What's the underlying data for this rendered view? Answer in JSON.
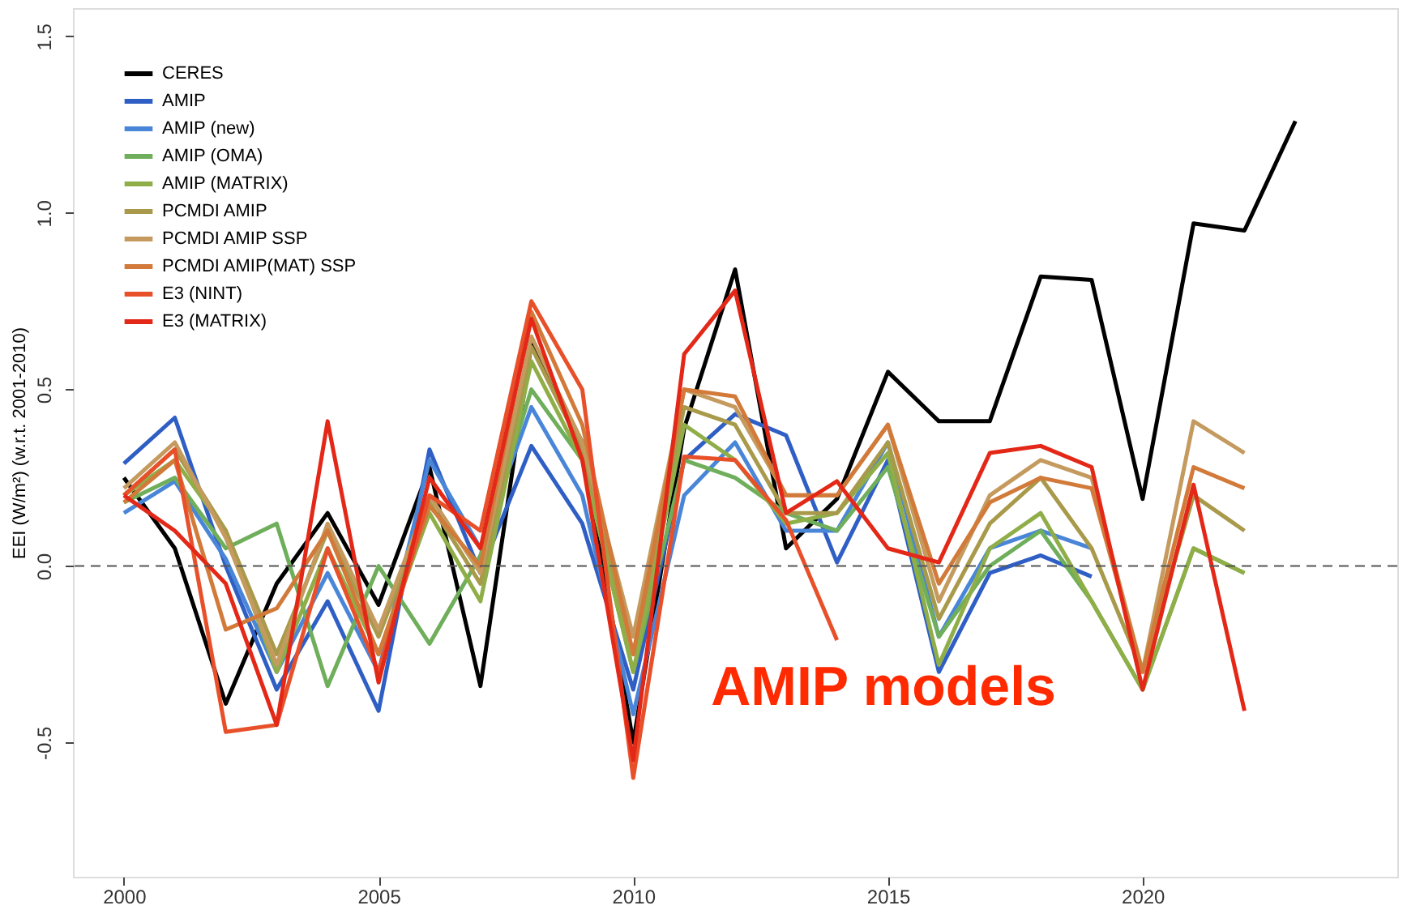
{
  "chart_data": {
    "type": "line",
    "ylabel": "EEI (W/m²) (w.r.t. 2001-2010)",
    "xlim": [
      1999,
      2025
    ],
    "xticks": [
      2000,
      2005,
      2010,
      2015,
      2020
    ],
    "ylim": [
      -0.88,
      1.58
    ],
    "yticks": [
      {
        "value": -0.5,
        "label": "-0.5"
      },
      {
        "value": 0,
        "label": "0.0"
      },
      {
        "value": 0.5,
        "label": "0.5"
      },
      {
        "value": 1,
        "label": "1.0"
      },
      {
        "value": 1.5,
        "label": "1.5"
      }
    ],
    "grid": false,
    "legend": "top left",
    "marker": "none",
    "line_style": "solid",
    "ref_lines": [
      {
        "axis": "y",
        "value": 0,
        "color": "#555555",
        "line_style": "dashed"
      }
    ],
    "annotations": [
      "AMIP models"
    ],
    "series": [
      {
        "name": "CERES",
        "color": "#000000",
        "x": [
          2000,
          2001,
          2002,
          2003,
          2004,
          2005,
          2006,
          2007,
          2008,
          2009,
          2010,
          2011,
          2012,
          2013,
          2014,
          2015,
          2016,
          2017,
          2018,
          2019,
          2020,
          2021,
          2022,
          2023
        ],
        "values": [
          0.25,
          0.05,
          -0.39,
          -0.05,
          0.15,
          -0.11,
          0.28,
          -0.34,
          0.63,
          0.35,
          -0.5,
          0.39,
          0.84,
          0.05,
          0.19,
          0.55,
          0.41,
          0.41,
          0.82,
          0.81,
          0.19,
          0.97,
          0.95,
          1.26
        ]
      },
      {
        "name": "AMIP",
        "color": "#2f5fc4",
        "x": [
          2000,
          2001,
          2002,
          2003,
          2004,
          2005,
          2006,
          2007,
          2008,
          2009,
          2010,
          2011,
          2012,
          2013,
          2014,
          2015,
          2016,
          2017,
          2018,
          2019
        ],
        "values": [
          0.29,
          0.42,
          0.0,
          -0.35,
          -0.1,
          -0.41,
          0.33,
          -0.02,
          0.34,
          0.12,
          -0.35,
          0.3,
          0.43,
          0.37,
          0.01,
          0.3,
          -0.3,
          -0.02,
          0.03,
          -0.03
        ]
      },
      {
        "name": "AMIP (new)",
        "color": "#4a86d8",
        "x": [
          2000,
          2001,
          2002,
          2003,
          2004,
          2005,
          2006,
          2007,
          2008,
          2009,
          2010,
          2011,
          2012,
          2013,
          2014,
          2015,
          2016,
          2017,
          2018,
          2019
        ],
        "values": [
          0.15,
          0.24,
          0.02,
          -0.3,
          -0.02,
          -0.3,
          0.3,
          0.05,
          0.45,
          0.2,
          -0.42,
          0.2,
          0.35,
          0.1,
          0.1,
          0.35,
          -0.2,
          0.05,
          0.1,
          0.05
        ]
      },
      {
        "name": "AMIP (OMA)",
        "color": "#6fae5a",
        "x": [
          2000,
          2001,
          2002,
          2003,
          2004,
          2005,
          2006,
          2007,
          2008,
          2009,
          2010,
          2011,
          2012,
          2013,
          2014,
          2015,
          2016,
          2017,
          2018,
          2019,
          2020,
          2021,
          2022
        ],
        "values": [
          0.18,
          0.25,
          0.05,
          0.12,
          -0.34,
          0.0,
          -0.22,
          0.03,
          0.5,
          0.3,
          -0.3,
          0.3,
          0.25,
          0.15,
          0.1,
          0.28,
          -0.2,
          0.0,
          0.1,
          -0.1,
          -0.35,
          0.05,
          -0.02
        ]
      },
      {
        "name": "AMIP (MATRIX)",
        "color": "#8fae48",
        "x": [
          2000,
          2001,
          2002,
          2003,
          2004,
          2005,
          2006,
          2007,
          2008,
          2009,
          2010,
          2011,
          2012,
          2013,
          2014,
          2015,
          2016,
          2017,
          2018,
          2019,
          2020,
          2021,
          2022
        ],
        "values": [
          0.2,
          0.3,
          0.1,
          -0.3,
          0.05,
          -0.25,
          0.15,
          -0.1,
          0.58,
          0.3,
          -0.3,
          0.4,
          0.3,
          0.12,
          0.15,
          0.32,
          -0.28,
          0.05,
          0.15,
          -0.1,
          -0.35,
          0.05,
          -0.02
        ]
      },
      {
        "name": "PCMDI AMIP",
        "color": "#a89a4a",
        "x": [
          2000,
          2001,
          2002,
          2003,
          2004,
          2005,
          2006,
          2007,
          2008,
          2009,
          2010,
          2011,
          2012,
          2013,
          2014,
          2015,
          2016,
          2017,
          2018,
          2019,
          2020,
          2021,
          2022
        ],
        "values": [
          0.2,
          0.33,
          0.1,
          -0.25,
          0.1,
          -0.2,
          0.18,
          -0.05,
          0.62,
          0.33,
          -0.25,
          0.45,
          0.4,
          0.15,
          0.15,
          0.35,
          -0.15,
          0.12,
          0.25,
          0.05,
          -0.3,
          0.2,
          0.1
        ]
      },
      {
        "name": "PCMDI AMIP SSP",
        "color": "#c49a5e",
        "x": [
          2000,
          2001,
          2002,
          2003,
          2004,
          2005,
          2006,
          2007,
          2008,
          2009,
          2010,
          2011,
          2012,
          2013,
          2014,
          2015,
          2016,
          2017,
          2018,
          2019,
          2020,
          2021,
          2022
        ],
        "values": [
          0.22,
          0.35,
          0.08,
          -0.28,
          0.12,
          -0.18,
          0.2,
          -0.02,
          0.65,
          0.35,
          -0.2,
          0.5,
          0.45,
          0.2,
          0.2,
          0.4,
          -0.1,
          0.2,
          0.3,
          0.25,
          -0.3,
          0.41,
          0.32
        ]
      },
      {
        "name": "PCMDI AMIP(MAT) SSP",
        "color": "#d27a3a",
        "x": [
          2000,
          2001,
          2002,
          2003,
          2004,
          2005,
          2006,
          2007,
          2008,
          2009,
          2010,
          2011,
          2012,
          2013,
          2014,
          2015,
          2016,
          2017,
          2018,
          2019,
          2020,
          2021,
          2022
        ],
        "values": [
          0.18,
          0.3,
          -0.18,
          -0.12,
          0.1,
          -0.25,
          0.17,
          0.0,
          0.72,
          0.4,
          -0.25,
          0.5,
          0.48,
          0.2,
          0.2,
          0.4,
          -0.05,
          0.18,
          0.25,
          0.22,
          -0.3,
          0.28,
          0.22
        ]
      },
      {
        "name": "E3 (NINT)",
        "color": "#e8502a",
        "x": [
          2000,
          2001,
          2002,
          2003,
          2004,
          2005,
          2006,
          2007,
          2008,
          2009,
          2010,
          2011,
          2012,
          2013,
          2014
        ],
        "values": [
          0.2,
          0.33,
          -0.47,
          -0.45,
          0.05,
          -0.3,
          0.2,
          0.1,
          0.75,
          0.5,
          -0.6,
          0.31,
          0.3,
          0.13,
          -0.21
        ]
      },
      {
        "name": "E3 (MATRIX)",
        "color": "#e42818",
        "x": [
          2000,
          2001,
          2002,
          2003,
          2004,
          2005,
          2006,
          2007,
          2008,
          2009,
          2010,
          2011,
          2012,
          2013,
          2014,
          2015,
          2016,
          2017,
          2018,
          2019,
          2020,
          2021,
          2022
        ],
        "values": [
          0.2,
          0.1,
          -0.05,
          -0.45,
          0.41,
          -0.33,
          0.25,
          0.05,
          0.7,
          0.3,
          -0.55,
          0.6,
          0.78,
          0.15,
          0.24,
          0.05,
          0.01,
          0.32,
          0.34,
          0.28,
          -0.35,
          0.23,
          -0.41
        ]
      }
    ]
  }
}
